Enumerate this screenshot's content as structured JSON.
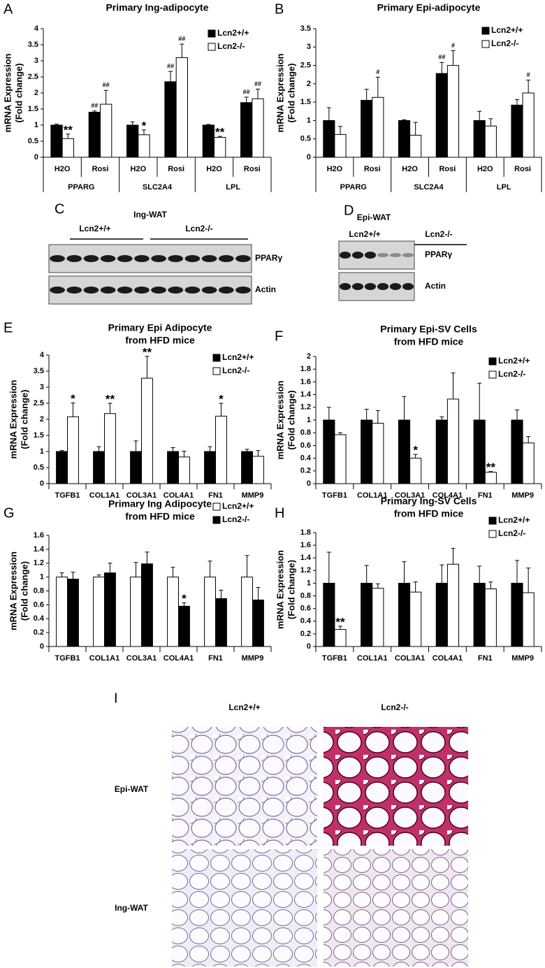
{
  "chart_data": [
    {
      "type": "bar",
      "panel": "A",
      "title": [
        "Primary Ing-adipocyte"
      ],
      "ylabel": [
        "mRNA Expression",
        "(Fold change)"
      ],
      "categories": [
        "H2O",
        "Rosi",
        "H2O",
        "Rosi",
        "H2O",
        "Rosi"
      ],
      "groups": [
        "PPARG",
        "SLC2A4",
        "LPL"
      ],
      "ylim": [
        0,
        4
      ],
      "yticks": [
        0,
        0.5,
        1,
        1.5,
        2,
        2.5,
        3,
        3.5,
        4
      ],
      "series": [
        {
          "name": "Lcn2+/+",
          "color": "#000000",
          "values": [
            1.0,
            1.4,
            1.0,
            2.35,
            1.0,
            1.7
          ],
          "errors": [
            0.03,
            0.04,
            0.1,
            0.32,
            0.02,
            0.17
          ],
          "annotations": [
            null,
            "##",
            null,
            "##",
            null,
            "##"
          ]
        },
        {
          "name": "Lcn2-/-",
          "color": "#ffffff",
          "values": [
            0.58,
            1.65,
            0.7,
            3.1,
            0.62,
            1.82
          ],
          "errors": [
            0.14,
            0.43,
            0.15,
            0.42,
            0.03,
            0.3
          ],
          "annotations": [
            "**",
            "##",
            "*",
            "##",
            "**",
            "##"
          ]
        }
      ]
    },
    {
      "type": "bar",
      "panel": "B",
      "title": [
        "Primary Epi-adipocyte"
      ],
      "ylabel": [
        "mRNA Expression",
        "(Fold change)"
      ],
      "categories": [
        "H2O",
        "Rosi",
        "H2O",
        "Rosi",
        "H2O",
        "Rosi"
      ],
      "groups": [
        "PPARG",
        "SLC2A4",
        "LPL"
      ],
      "ylim": [
        0,
        3.5
      ],
      "yticks": [
        0,
        0.5,
        1,
        1.5,
        2,
        2.5,
        3,
        3.5
      ],
      "series": [
        {
          "name": "Lcn2+/+",
          "color": "#000000",
          "values": [
            1.0,
            1.55,
            1.0,
            2.28,
            1.0,
            1.42
          ],
          "errors": [
            0.35,
            0.3,
            0.02,
            0.3,
            0.25,
            0.15
          ],
          "annotations": [
            null,
            null,
            null,
            "##",
            null,
            null
          ]
        },
        {
          "name": "Lcn2-/-",
          "color": "#ffffff",
          "values": [
            0.62,
            1.63,
            0.6,
            2.5,
            0.85,
            1.75
          ],
          "errors": [
            0.22,
            0.55,
            0.35,
            0.4,
            0.2,
            0.35
          ],
          "annotations": [
            null,
            "#",
            null,
            "#",
            null,
            "#"
          ]
        }
      ]
    },
    {
      "type": "bar",
      "panel": "E",
      "title": [
        "Primary Epi Adipocyte",
        "from HFD mice"
      ],
      "ylabel": [
        "mRNA Expression",
        "(Fold change)"
      ],
      "categories": [
        "TGFB1",
        "COL1A1",
        "COL3A1",
        "COL4A1",
        "FN1",
        "MMP9"
      ],
      "ylim": [
        0,
        4
      ],
      "yticks": [
        0,
        0.5,
        1,
        1.5,
        2,
        2.5,
        3,
        3.5,
        4
      ],
      "series": [
        {
          "name": "Lcn2+/+",
          "color": "#000000",
          "values": [
            1,
            1,
            1,
            1,
            1,
            1
          ],
          "errors": [
            0.03,
            0.15,
            0.33,
            0.12,
            0.15,
            0.07
          ],
          "annotations": [
            null,
            null,
            null,
            null,
            null,
            null
          ]
        },
        {
          "name": "Lcn2-/-",
          "color": "#ffffff",
          "values": [
            2.08,
            2.18,
            3.28,
            0.83,
            2.1,
            0.85
          ],
          "errors": [
            0.43,
            0.32,
            0.68,
            0.18,
            0.4,
            0.18
          ],
          "annotations": [
            "*",
            "**",
            "**",
            null,
            "*",
            null
          ]
        }
      ]
    },
    {
      "type": "bar",
      "panel": "F",
      "title": [
        "Primary Epi-SV Cells",
        "from HFD mice"
      ],
      "ylabel": [
        "mRNA Expression",
        "(Fold change)"
      ],
      "categories": [
        "TGFB1",
        "COL1A1",
        "COL3A1",
        "COL4A1",
        "FN1",
        "MMP9"
      ],
      "ylim": [
        0,
        2
      ],
      "yticks": [
        0,
        0.2,
        0.4,
        0.6,
        0.8,
        1,
        1.2,
        1.4,
        1.6,
        1.8,
        2
      ],
      "series": [
        {
          "name": "Lcn2+/+",
          "color": "#000000",
          "values": [
            1,
            1,
            1,
            1,
            1,
            1
          ],
          "errors": [
            0.2,
            0.17,
            0.37,
            0.05,
            0.58,
            0.16
          ],
          "annotations": [
            null,
            null,
            null,
            null,
            null,
            null
          ]
        },
        {
          "name": "Lcn2-/-",
          "color": "#ffffff",
          "values": [
            0.77,
            0.95,
            0.4,
            1.33,
            0.18,
            0.64
          ],
          "errors": [
            0.03,
            0.2,
            0.06,
            0.41,
            0.01,
            0.1
          ],
          "annotations": [
            null,
            null,
            "*",
            null,
            "**",
            null
          ]
        }
      ]
    },
    {
      "type": "bar",
      "panel": "G",
      "title": [
        "Primary Ing Adipocyte",
        "from HFD mice"
      ],
      "ylabel": [
        "mRNA Expression",
        "(Fold change)"
      ],
      "categories": [
        "TGFB1",
        "COL1A1",
        "COL3A1",
        "COL4A1",
        "FN1",
        "MMP9"
      ],
      "ylim": [
        0,
        1.6
      ],
      "yticks": [
        0,
        0.2,
        0.4,
        0.6,
        0.8,
        1,
        1.2,
        1.4,
        1.6
      ],
      "series": [
        {
          "name": "Lcn2+/+",
          "color": "#ffffff",
          "values": [
            1,
            1,
            1,
            1,
            1,
            1
          ],
          "errors": [
            0.06,
            0.03,
            0.21,
            0.14,
            0.23,
            0.31
          ],
          "annotations": [
            null,
            null,
            null,
            null,
            null,
            null
          ]
        },
        {
          "name": "Lcn2-/-",
          "color": "#000000",
          "values": [
            0.97,
            1.06,
            1.19,
            0.58,
            0.69,
            0.67
          ],
          "errors": [
            0.1,
            0.14,
            0.17,
            0.05,
            0.12,
            0.18
          ],
          "annotations": [
            null,
            null,
            null,
            "*",
            null,
            null
          ]
        }
      ]
    },
    {
      "type": "bar",
      "panel": "H",
      "title": [
        "Primary Ing-SV Cells",
        "from HFD mice"
      ],
      "ylabel": [
        "mRNA Expression",
        "(Fold change)"
      ],
      "categories": [
        "TGFB1",
        "COL1A1",
        "COL3A1",
        "COL4A1",
        "FN1",
        "MMP9"
      ],
      "ylim": [
        0,
        1.8
      ],
      "yticks": [
        0,
        0.2,
        0.4,
        0.6,
        0.8,
        1,
        1.2,
        1.4,
        1.6,
        1.8
      ],
      "series": [
        {
          "name": "Lcn2+/+",
          "color": "#000000",
          "values": [
            1,
            1,
            1,
            1,
            1,
            1
          ],
          "errors": [
            0.49,
            0.28,
            0.34,
            0.29,
            0.27,
            0.36
          ],
          "annotations": [
            null,
            null,
            null,
            null,
            null,
            null
          ]
        },
        {
          "name": "Lcn2-/-",
          "color": "#ffffff",
          "values": [
            0.27,
            0.92,
            0.86,
            1.3,
            0.91,
            0.85
          ],
          "errors": [
            0.05,
            0.07,
            0.16,
            0.25,
            0.11,
            0.39
          ],
          "annotations": [
            "**",
            null,
            null,
            null,
            null,
            null
          ]
        }
      ]
    }
  ],
  "blots": [
    {
      "panel": "C",
      "title": "Ing-WAT",
      "groups": [
        "Lcn2+/+",
        "Lcn2-/-"
      ],
      "bands": [
        "PPARγ",
        "Actin"
      ]
    },
    {
      "panel": "D",
      "title": "Epi-WAT",
      "groups": [
        "Lcn2+/+",
        "Lcn2-/-"
      ],
      "bands": [
        "PPARγ",
        "Actin"
      ]
    }
  ],
  "histology": {
    "panel": "I",
    "columns": [
      "Lcn2+/+",
      "Lcn2-/-"
    ],
    "rows": [
      "Epi-WAT",
      "Ing-WAT"
    ]
  }
}
